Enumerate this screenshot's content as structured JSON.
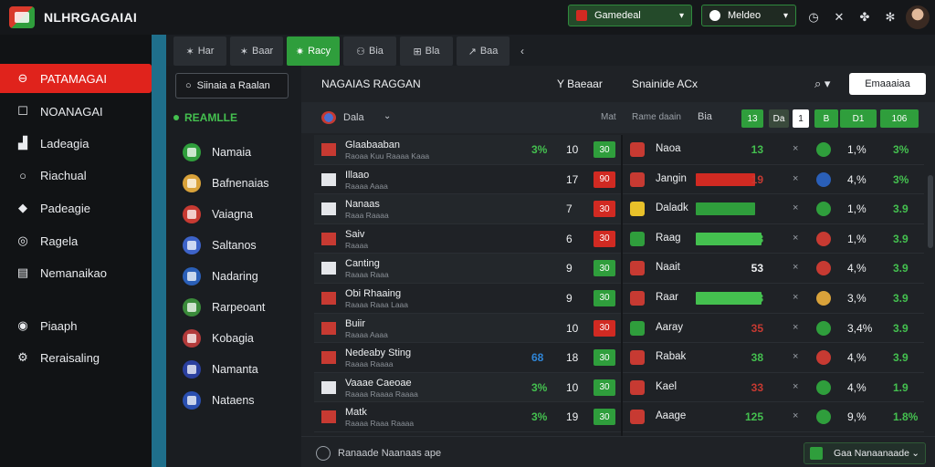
{
  "app": {
    "title": "NLHRGAGAIAI"
  },
  "topbar": {
    "select1": "Gamedeal",
    "select2": "Meldeo",
    "icons": [
      "clock-icon",
      "tools-icon",
      "puzzle-icon",
      "flag-icon"
    ]
  },
  "sidebar": {
    "items": [
      {
        "label": "PATAMAGAI",
        "icon": "home-icon"
      },
      {
        "label": "NOANAGAI",
        "icon": "list-icon"
      },
      {
        "label": "Ladeagia",
        "icon": "chart-icon"
      },
      {
        "label": "Riachual",
        "icon": "search-icon"
      },
      {
        "label": "Padeagie",
        "icon": "tag-icon"
      },
      {
        "label": "Ragela",
        "icon": "globe-icon"
      },
      {
        "label": "Nemanaikao",
        "icon": "document-icon"
      },
      {
        "label": "Piaaph",
        "icon": "help-icon"
      },
      {
        "label": "Reraisaling",
        "icon": "settings-icon"
      }
    ]
  },
  "tabs": [
    {
      "label": "Har",
      "icon": "wand-icon"
    },
    {
      "label": "Baar",
      "icon": "wand-icon"
    },
    {
      "label": "Racy",
      "icon": "star-icon"
    },
    {
      "label": "Bia",
      "icon": "gift-icon"
    },
    {
      "label": "Bla",
      "icon": "grid-icon"
    },
    {
      "label": "Baa",
      "icon": "arrow-icon"
    }
  ],
  "league": {
    "search_label": "Siinaia a Raalan",
    "header": "REAMLLE",
    "items": [
      {
        "label": "Namaia",
        "color": "#2f9e3c"
      },
      {
        "label": "Bafnenaias",
        "color": "#d9a23a"
      },
      {
        "label": "Vaiagna",
        "color": "#c73a32"
      },
      {
        "label": "Saltanos",
        "color": "#3d63c9"
      },
      {
        "label": "Nadaring",
        "color": "#2a5fb8"
      },
      {
        "label": "Rarpeoant",
        "color": "#3a8a3a"
      },
      {
        "label": "Kobagia",
        "color": "#b23a3a"
      },
      {
        "label": "Namanta",
        "color": "#2a3f9e"
      },
      {
        "label": "Nataens",
        "color": "#2a4fb0"
      }
    ]
  },
  "main": {
    "title": "NAGAIAS RAGGAN",
    "sort_label": "Y  Baeaar",
    "market_label": "Snainide ACx",
    "action_button": "Emaaaiaa",
    "subhead": {
      "country": "Dala",
      "label1": "Mat",
      "label2": "Rame daain",
      "label3": "Bia",
      "boxes": [
        "13",
        "Da",
        "1",
        "B",
        "D1",
        "106"
      ]
    },
    "left_rows": [
      {
        "name": "Glaabaaban",
        "sub": "Raoaa Kuu Raaaa Kaaa",
        "pct": "3%",
        "pct_color": "#44c04f",
        "num": "10",
        "odd": "30",
        "odd_color": "#2f9e3c"
      },
      {
        "name": "Illaao",
        "sub": "Raaaa Aaaa",
        "pct": "",
        "pct_color": "#c73a32",
        "num": "17",
        "odd": "90",
        "odd_color": "#d12a22"
      },
      {
        "name": "Nanaas",
        "sub": "Raaa Raaaa",
        "pct": "",
        "pct_color": "#c73a32",
        "num": "7",
        "odd": "30",
        "odd_color": "#d12a22"
      },
      {
        "name": "Saiv",
        "sub": "Raaaa",
        "pct": "",
        "pct_color": "#c73a32",
        "num": "6",
        "odd": "30",
        "odd_color": "#d12a22"
      },
      {
        "name": "Canting",
        "sub": "Raaaa Raaa",
        "pct": "",
        "pct_color": "#c73a32",
        "num": "9",
        "odd": "30",
        "odd_color": "#2f9e3c"
      },
      {
        "name": "Obi Rhaaing",
        "sub": "Raaaa Raaa Laaa",
        "pct": "",
        "pct_color": "#c73a32",
        "num": "9",
        "odd": "30",
        "odd_color": "#2f9e3c"
      },
      {
        "name": "Buiir",
        "sub": "Raaaa Aaaa",
        "pct": "",
        "pct_color": "#c73a32",
        "num": "10",
        "odd": "30",
        "odd_color": "#d12a22"
      },
      {
        "name": "Nedeaby Sting",
        "sub": "Raaaa Raaaa",
        "pct": "68",
        "pct_color": "#2f86d8",
        "num": "18",
        "odd": "30",
        "odd_color": "#2f9e3c"
      },
      {
        "name": "Vaaae Caeoae",
        "sub": "Raaaa Raaaa Raaaa",
        "pct": "3%",
        "pct_color": "#44c04f",
        "num": "10",
        "odd": "30",
        "odd_color": "#2f9e3c"
      },
      {
        "name": "Matk",
        "sub": "Raaaa Raaa Raaaa",
        "pct": "3%",
        "pct_color": "#44c04f",
        "num": "19",
        "odd": "30",
        "odd_color": "#2f9e3c"
      }
    ],
    "right_rows": [
      {
        "name": "Naoa",
        "bar": 0,
        "bar_color": "#2f9e3c",
        "val": "13",
        "val_color": "#44c04f",
        "pct": "1,%",
        "pct2": "3%",
        "dot": "#2f9e3c"
      },
      {
        "name": "Jangin",
        "bar": 0.9,
        "bar_color": "#d12a22",
        "val": "19",
        "val_color": "#c73a32",
        "pct": "4,%",
        "pct2": "3%",
        "dot": "#2a5fb8"
      },
      {
        "name": "Daladk",
        "bar": 0.9,
        "bar_color": "#2f9e3c",
        "val": "",
        "val_color": "#44c04f",
        "pct": "1,%",
        "pct2": "3.9",
        "dot": "#2f9e3c"
      },
      {
        "name": "Raag",
        "bar": 1.0,
        "bar_color": "#44c04f",
        "val": "18",
        "val_color": "#44c04f",
        "pct": "1,%",
        "pct2": "3.9",
        "dot": "#c73a32"
      },
      {
        "name": "Naait",
        "bar": 0,
        "bar_color": "#2f9e3c",
        "val": "53",
        "val_color": "#eef0f2",
        "pct": "4,%",
        "pct2": "3.9",
        "dot": "#c73a32"
      },
      {
        "name": "Raar",
        "bar": 1.0,
        "bar_color": "#44c04f",
        "val": "38",
        "val_color": "#44c04f",
        "pct": "3,%",
        "pct2": "3.9",
        "dot": "#d9a23a"
      },
      {
        "name": "Aaray",
        "bar": 0,
        "bar_color": "#2f9e3c",
        "val": "35",
        "val_color": "#c73a32",
        "pct": "3,4%",
        "pct2": "3.9",
        "dot": "#2f9e3c"
      },
      {
        "name": "Rabak",
        "bar": 0,
        "bar_color": "#2f9e3c",
        "val": "38",
        "val_color": "#44c04f",
        "pct": "4,%",
        "pct2": "3.9",
        "dot": "#c73a32"
      },
      {
        "name": "Kael",
        "bar": 0,
        "bar_color": "#2f9e3c",
        "val": "33",
        "val_color": "#c73a32",
        "pct": "4,%",
        "pct2": "1.9",
        "dot": "#2f9e3c"
      },
      {
        "name": "Aaage",
        "bar": 0,
        "bar_color": "#2f9e3c",
        "val": "125",
        "val_color": "#44c04f",
        "pct": "9,%",
        "pct2": "1.8%",
        "dot": "#2f9e3c"
      }
    ],
    "footer": {
      "text": "Ranaade Naanaas ape",
      "button": "Gaa Nanaanaade"
    }
  }
}
